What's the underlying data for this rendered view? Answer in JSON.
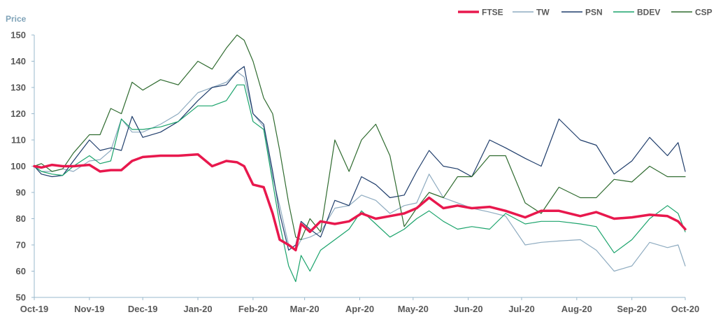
{
  "chart_data": {
    "type": "line",
    "title": "",
    "xlabel": "",
    "ylabel": "Price",
    "ylim": [
      50,
      150
    ],
    "yticks": [
      50,
      60,
      70,
      80,
      90,
      100,
      110,
      120,
      130,
      140,
      150
    ],
    "xlim": [
      "2019-10-01",
      "2020-10-01"
    ],
    "xticks": [
      {
        "date": "2019-10-01",
        "label": "Oct-19"
      },
      {
        "date": "2019-11-01",
        "label": "Nov-19"
      },
      {
        "date": "2019-12-01",
        "label": "Dec-19"
      },
      {
        "date": "2020-01-01",
        "label": "Jan-20"
      },
      {
        "date": "2020-02-01",
        "label": "Feb-20"
      },
      {
        "date": "2020-03-01",
        "label": "Mar-20"
      },
      {
        "date": "2020-04-01",
        "label": "Apr-20"
      },
      {
        "date": "2020-05-01",
        "label": "May-20"
      },
      {
        "date": "2020-06-01",
        "label": "Jun-20"
      },
      {
        "date": "2020-07-01",
        "label": "Jul-20"
      },
      {
        "date": "2020-08-01",
        "label": "Aug-20"
      },
      {
        "date": "2020-09-01",
        "label": "Sep-20"
      },
      {
        "date": "2020-10-01",
        "label": "Oct-20"
      }
    ],
    "grid": false,
    "legend_position": "top-right",
    "x": [
      "2019-10-01",
      "2019-10-05",
      "2019-10-11",
      "2019-10-17",
      "2019-10-23",
      "2019-11-01",
      "2019-11-07",
      "2019-11-13",
      "2019-11-19",
      "2019-11-25",
      "2019-12-01",
      "2019-12-11",
      "2019-12-21",
      "2020-01-01",
      "2020-01-09",
      "2020-01-17",
      "2020-01-23",
      "2020-01-27",
      "2020-02-01",
      "2020-02-07",
      "2020-02-12",
      "2020-02-16",
      "2020-02-21",
      "2020-02-25",
      "2020-02-28",
      "2020-03-04",
      "2020-03-10",
      "2020-03-18",
      "2020-03-26",
      "2020-04-02",
      "2020-04-10",
      "2020-04-18",
      "2020-04-26",
      "2020-05-03",
      "2020-05-10",
      "2020-05-18",
      "2020-05-26",
      "2020-06-03",
      "2020-06-13",
      "2020-06-22",
      "2020-07-03",
      "2020-07-12",
      "2020-07-22",
      "2020-08-03",
      "2020-08-12",
      "2020-08-22",
      "2020-09-01",
      "2020-09-11",
      "2020-09-21",
      "2020-09-27",
      "2020-10-01"
    ],
    "series": [
      {
        "name": "TW",
        "color": "#8eabc0",
        "width": 1.2,
        "values": [
          100,
          98,
          98,
          99,
          98,
          102,
          102.5,
          106,
          118,
          113,
          113,
          116,
          120,
          128,
          130,
          132,
          136,
          134,
          120,
          115,
          96,
          85,
          70,
          68,
          72,
          73,
          75,
          84,
          85,
          89,
          87,
          82,
          85,
          86,
          97,
          88,
          86,
          84,
          82.5,
          81,
          70,
          71,
          71.5,
          72,
          68,
          60,
          62,
          71,
          69,
          70,
          62
        ]
      },
      {
        "name": "PSN",
        "color": "#1f3d6b",
        "width": 1.2,
        "values": [
          100,
          97,
          96,
          96.5,
          102,
          110,
          106,
          107,
          106,
          119,
          111,
          113,
          117,
          125,
          130,
          131,
          136,
          138,
          120,
          116,
          98,
          82,
          68,
          70,
          79,
          76,
          73,
          87,
          85,
          96,
          93,
          88,
          89,
          98,
          106,
          100,
          99,
          96,
          110,
          107,
          103,
          100,
          118,
          110,
          108,
          97,
          102,
          111,
          104,
          109,
          98
        ]
      },
      {
        "name": "BDEV",
        "color": "#1aa36b",
        "width": 1.2,
        "values": [
          100,
          98,
          97,
          96.5,
          100,
          104,
          101,
          102,
          118,
          114,
          114,
          115,
          117,
          123,
          123,
          125,
          131,
          131,
          117,
          114,
          94,
          78,
          62,
          56,
          66,
          60,
          68,
          72,
          76,
          83,
          78,
          73,
          76,
          80,
          83,
          79,
          76,
          77,
          76,
          82,
          78,
          79,
          79,
          78,
          77,
          67,
          72,
          80,
          85,
          82,
          75
        ]
      },
      {
        "name": "CSP",
        "color": "#2f6b2f",
        "width": 1.2,
        "values": [
          100,
          101,
          98,
          99,
          105,
          112,
          112,
          122,
          120,
          132,
          129,
          133,
          131,
          140,
          137,
          145,
          150,
          148,
          140,
          126,
          120,
          106,
          86,
          73,
          72,
          80,
          75,
          110,
          98,
          110,
          116,
          104,
          77,
          84,
          90,
          88,
          96,
          96,
          104,
          104,
          86,
          82,
          92,
          88,
          88,
          95,
          94,
          100,
          96,
          96,
          96
        ]
      },
      {
        "name": "FTSE",
        "color": "#e8184d",
        "width": 3.5,
        "values": [
          100,
          99.5,
          100.5,
          100,
          100,
          100.5,
          98,
          98.5,
          98.5,
          102,
          103.5,
          104,
          104,
          104.5,
          100,
          102,
          101.5,
          100,
          93,
          92,
          82,
          72,
          70,
          68,
          78,
          75,
          79,
          78,
          79,
          82,
          80,
          81,
          82,
          84,
          88,
          84,
          85,
          84,
          84.5,
          83,
          80.5,
          83,
          83,
          81,
          82.5,
          80,
          80.5,
          81.5,
          81,
          79,
          76
        ]
      }
    ],
    "legend_order": [
      "FTSE",
      "TW",
      "PSN",
      "BDEV",
      "CSP"
    ],
    "axis_color": "#9ab8cc"
  }
}
